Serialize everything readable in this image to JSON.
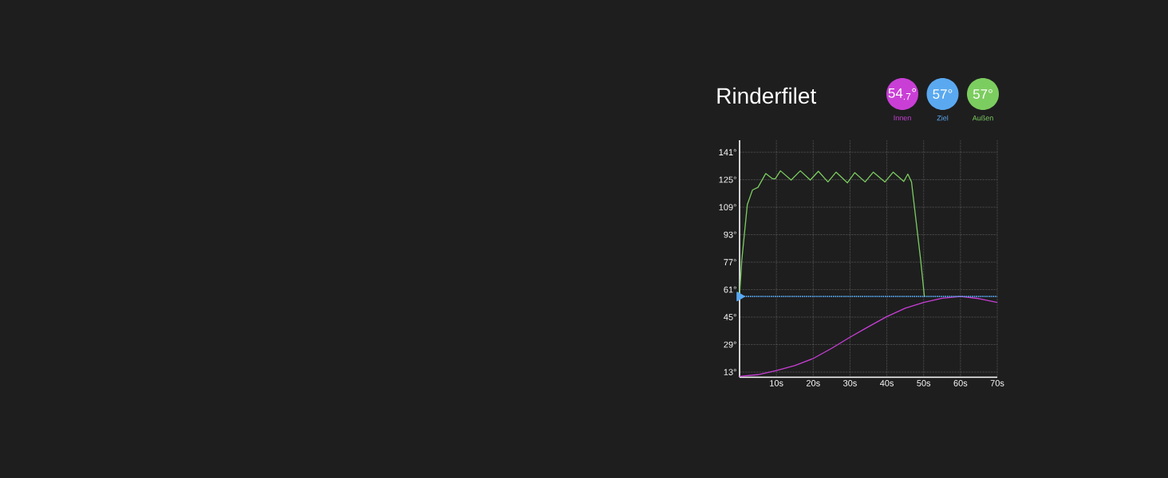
{
  "chart_data": {
    "type": "line",
    "title": "Rinderfilet",
    "xlim": [
      0,
      70
    ],
    "ylim": [
      10,
      148
    ],
    "xticks": [
      {
        "value": 10,
        "label": "10s"
      },
      {
        "value": 20,
        "label": "20s"
      },
      {
        "value": 30,
        "label": "30s"
      },
      {
        "value": 40,
        "label": "40s"
      },
      {
        "value": 50,
        "label": "50s"
      },
      {
        "value": 60,
        "label": "60s"
      },
      {
        "value": 70,
        "label": "70s"
      }
    ],
    "yticks": [
      {
        "value": 13,
        "label": "13°"
      },
      {
        "value": 29,
        "label": "29°"
      },
      {
        "value": 45,
        "label": "45°"
      },
      {
        "value": 61,
        "label": "61°"
      },
      {
        "value": 77,
        "label": "77°"
      },
      {
        "value": 93,
        "label": "93°"
      },
      {
        "value": 109,
        "label": "109°"
      },
      {
        "value": 125,
        "label": "125°"
      },
      {
        "value": 141,
        "label": "141°"
      }
    ],
    "grid": true,
    "legend": "top right",
    "line_style": "solid",
    "annotations": [
      "54$_{.7}$°",
      "57°",
      "57°"
    ],
    "series": [
      {
        "name": "Innen",
        "color": "#c93fd6",
        "x": [
          0,
          5,
          10,
          15,
          20,
          25,
          30,
          35,
          40,
          45,
          50,
          55,
          60,
          65,
          70
        ],
        "values": [
          10.5,
          11.5,
          13.9,
          16.8,
          20.9,
          26.8,
          33.3,
          39.4,
          45.3,
          50.2,
          53.5,
          56,
          57,
          55.8,
          53.5
        ]
      },
      {
        "name": "Ziel",
        "color": "#5aa9f0",
        "line_style": "dotted",
        "marker": "triangle",
        "x": [
          0,
          70
        ],
        "values": [
          57,
          57
        ]
      },
      {
        "name": "Außen",
        "color": "#7ccd5f",
        "x": [
          0,
          0.6,
          2.1,
          3.5,
          5,
          6,
          7.1,
          8.9,
          9.7,
          11.1,
          14,
          16.5,
          19.2,
          21.4,
          24,
          26.2,
          29.3,
          31.3,
          34.1,
          36.3,
          39.5,
          41.7,
          44.6,
          45.7,
          46.7,
          49.2,
          50.2
        ],
        "values": [
          58,
          78,
          110.5,
          119,
          120.6,
          124.4,
          128.6,
          125.6,
          125.6,
          130.2,
          124.8,
          130.2,
          124.8,
          129.9,
          123.7,
          129.4,
          123.2,
          129.1,
          123.7,
          129.4,
          123.7,
          129.4,
          124,
          128.3,
          123.7,
          78,
          57
        ]
      }
    ]
  }
}
